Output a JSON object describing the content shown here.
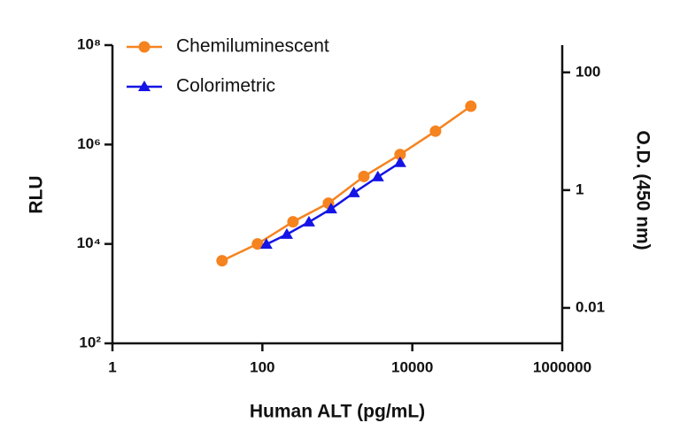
{
  "chart_data": {
    "type": "line",
    "x_label": "Human ALT (pg/mL)",
    "y_label": "RLU",
    "y2_label": "O.D. (450 nm)",
    "xscale": "log",
    "yscale": "log",
    "y2scale": "log",
    "xlim": [
      1,
      1000000
    ],
    "xticks": [
      1,
      100,
      10000,
      1000000
    ],
    "ylim": [
      100,
      100000000
    ],
    "yticks": [
      {
        "value": 100,
        "label": "10²"
      },
      {
        "value": 10000,
        "label": "10⁴"
      },
      {
        "value": 1000000,
        "label": "10⁶"
      },
      {
        "value": 100000000,
        "label": "10⁸"
      }
    ],
    "y2lim": [
      0.0025,
      290
    ],
    "y2ticks": [
      0.01,
      1,
      100
    ],
    "legend": "upper left",
    "series": [
      {
        "name": "Chemiluminescent",
        "color": "#f5831f",
        "marker": "circle",
        "x": [
          29,
          86,
          256,
          760,
          2260,
          6870,
          20400,
          60400
        ],
        "values": [
          4600,
          10000,
          27900,
          66000,
          228000,
          630000,
          1860000,
          5900000
        ]
      },
      {
        "name": "Colorimetric",
        "color": "#1414e6",
        "marker": "triangle",
        "axis": "y2",
        "x": [
          113,
          212,
          418,
          824,
          1660,
          3470,
          6870
        ],
        "values": [
          0.12,
          0.177,
          0.287,
          0.48,
          0.9,
          1.68,
          2.93
        ]
      }
    ]
  }
}
